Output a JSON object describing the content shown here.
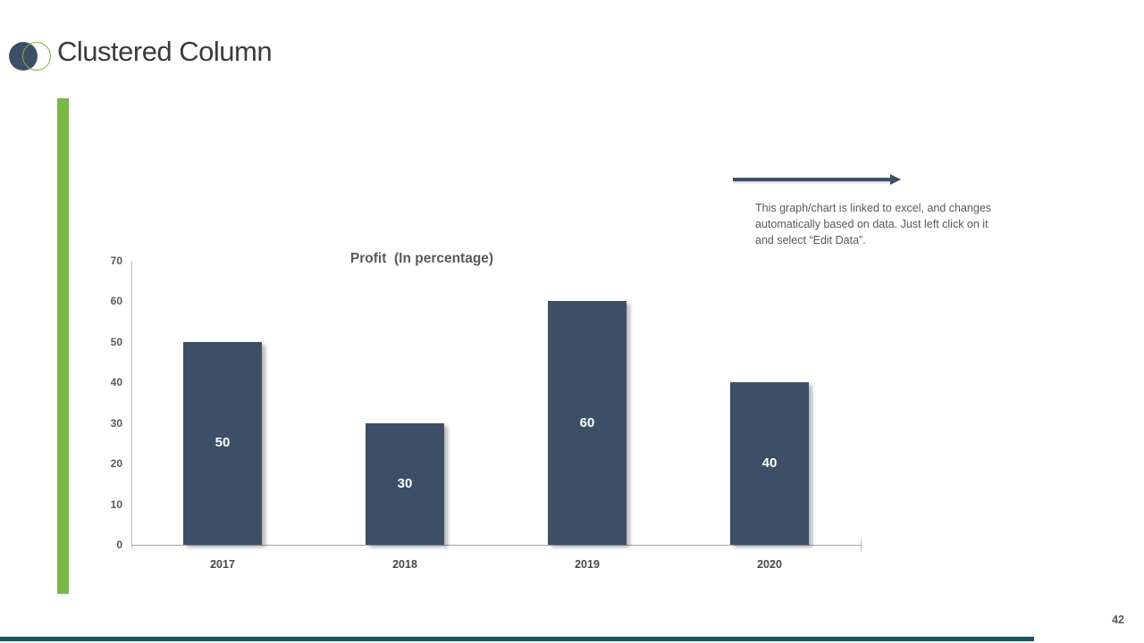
{
  "slide": {
    "title": "Clustered Column",
    "page_number": "42"
  },
  "logo": {
    "navy_circle_color": "#3d4f66",
    "green_circle_color": "#7ab648"
  },
  "accent": {
    "left_bar_color": "#7ab648",
    "footer_bar_color": "#17565e"
  },
  "annotation": {
    "lines": [
      "This graph/chart is linked to excel, and changes",
      "automatically based on data. Just left click on it",
      "and select “Edit Data”."
    ],
    "arrow_color": "#3d4f66"
  },
  "chart_data": {
    "type": "bar",
    "title": "Profit  (In percentage)",
    "categories": [
      "2017",
      "2018",
      "2019",
      "2020"
    ],
    "values": [
      50,
      30,
      60,
      40
    ],
    "yticks": [
      0,
      10,
      20,
      30,
      40,
      50,
      60,
      70
    ],
    "ylim": [
      0,
      70
    ],
    "xlabel": "",
    "ylabel": "",
    "grid": false,
    "legend": false,
    "bar_color": "#3d4f66",
    "value_label_color": "#ffffff"
  }
}
